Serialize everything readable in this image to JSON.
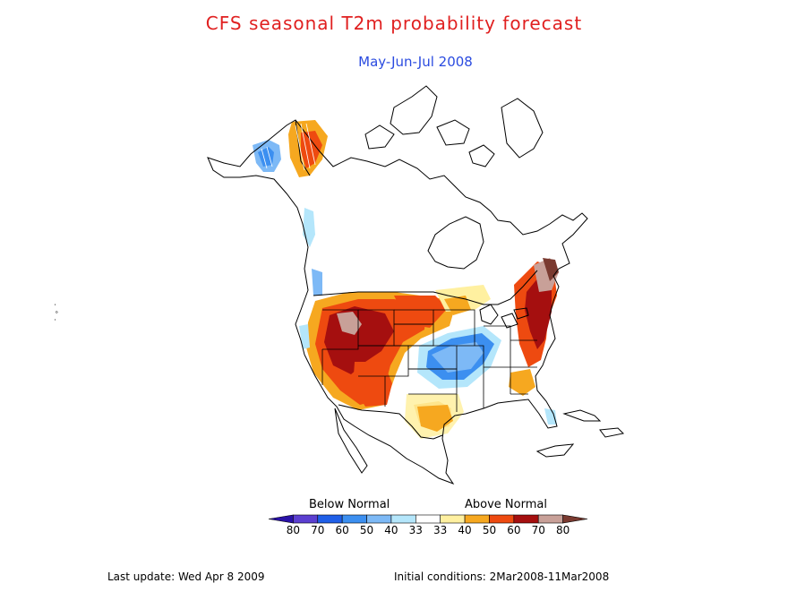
{
  "title": "CFS seasonal T2m probability forecast",
  "subtitle": "May-Jun-Jul 2008",
  "legend": {
    "below_label": "Below Normal",
    "above_label": "Above Normal",
    "tick_labels": [
      "80",
      "70",
      "60",
      "50",
      "40",
      "33",
      "33",
      "40",
      "50",
      "60",
      "70",
      "80"
    ],
    "colors": [
      "#2a12a8",
      "#5b3fd0",
      "#1f5fe8",
      "#3c8ff0",
      "#7db9f6",
      "#b4e6fb",
      "#ffffff",
      "#fff0a0",
      "#f6a820",
      "#ee4a10",
      "#a50f0f",
      "#c8a098",
      "#7a3a30"
    ]
  },
  "footer": {
    "last_update": "Last update: Wed Apr 8 2009",
    "initial_conditions": "Initial conditions: 2Mar2008-11Mar2008"
  }
}
